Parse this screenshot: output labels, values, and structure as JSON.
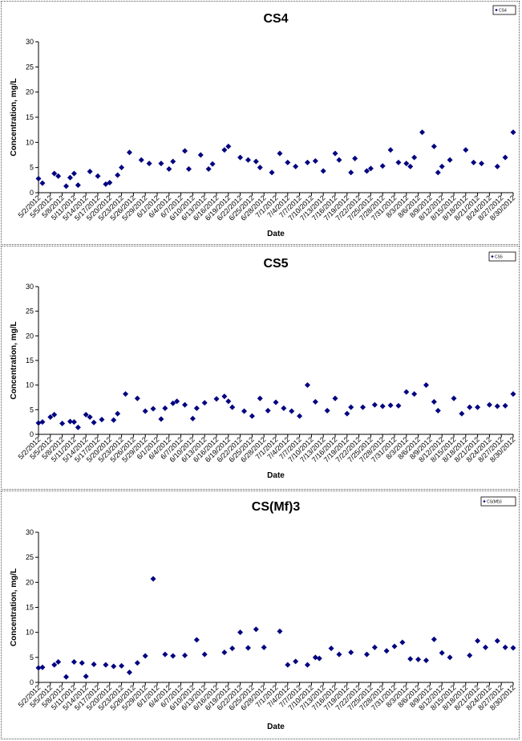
{
  "chart_data": [
    {
      "type": "scatter",
      "title": "CS4",
      "xlabel": "Date",
      "ylabel": "Concentration, mg/L",
      "ylim": [
        0,
        30
      ],
      "yticks": [
        0,
        5,
        10,
        15,
        20,
        25,
        30
      ],
      "xticks": [
        "5/2/2012",
        "5/5/2012",
        "5/8/2012",
        "5/11/2012",
        "5/14/2012",
        "5/17/2012",
        "5/20/2012",
        "5/23/2012",
        "5/26/2012",
        "5/29/2012",
        "6/1/2012",
        "6/4/2012",
        "6/7/2012",
        "6/10/2012",
        "6/13/2012",
        "6/16/2012",
        "6/19/2012",
        "6/22/2012",
        "6/25/2012",
        "6/28/2012",
        "7/1/2012",
        "7/4/2012",
        "7/7/2012",
        "7/10/2012",
        "7/13/2012",
        "7/16/2012",
        "7/19/2012",
        "7/22/2012",
        "7/25/2012",
        "7/28/2012",
        "7/31/2012",
        "8/3/2012",
        "8/6/2012",
        "8/9/2012",
        "8/12/2012",
        "8/15/2012",
        "8/18/2012",
        "8/21/2012",
        "8/24/2012",
        "8/27/2012",
        "8/30/2012"
      ],
      "legend": "top-right",
      "series": [
        {
          "name": "CS4",
          "color": "#000080",
          "x": [
            "5/2/2012",
            "5/3/2012",
            "5/6/2012",
            "5/7/2012",
            "5/9/2012",
            "5/10/2012",
            "5/11/2012",
            "5/12/2012",
            "5/15/2012",
            "5/17/2012",
            "5/19/2012",
            "5/20/2012",
            "5/22/2012",
            "5/23/2012",
            "5/25/2012",
            "5/28/2012",
            "5/30/2012",
            "6/2/2012",
            "6/4/2012",
            "6/5/2012",
            "6/8/2012",
            "6/9/2012",
            "6/12/2012",
            "6/14/2012",
            "6/15/2012",
            "6/18/2012",
            "6/19/2012",
            "6/22/2012",
            "6/24/2012",
            "6/26/2012",
            "6/27/2012",
            "6/30/2012",
            "7/2/2012",
            "7/4/2012",
            "7/6/2012",
            "7/9/2012",
            "7/11/2012",
            "7/13/2012",
            "7/16/2012",
            "7/17/2012",
            "7/20/2012",
            "7/21/2012",
            "7/24/2012",
            "7/25/2012",
            "7/28/2012",
            "7/30/2012",
            "8/1/2012",
            "8/3/2012",
            "8/4/2012",
            "8/5/2012",
            "8/7/2012",
            "8/10/2012",
            "8/11/2012",
            "8/12/2012",
            "8/14/2012",
            "8/18/2012",
            "8/20/2012",
            "8/22/2012",
            "8/26/2012",
            "8/28/2012",
            "8/30/2012"
          ],
          "y": [
            2.8,
            1.9,
            3.8,
            3.3,
            1.3,
            3.0,
            3.8,
            1.5,
            4.2,
            3.3,
            1.7,
            2.0,
            3.5,
            5.0,
            8.0,
            6.5,
            5.8,
            5.8,
            4.7,
            6.2,
            8.3,
            4.7,
            7.5,
            4.7,
            5.7,
            8.5,
            9.2,
            7.0,
            6.5,
            6.2,
            5.0,
            4.0,
            7.8,
            6.0,
            5.2,
            6.0,
            6.3,
            4.3,
            7.8,
            6.5,
            4.0,
            6.8,
            4.3,
            4.8,
            5.3,
            8.5,
            6.0,
            5.8,
            5.2,
            7.0,
            12.0,
            9.2,
            4.0,
            5.2,
            6.5,
            8.5,
            6.0,
            5.8,
            5.2,
            7.0,
            12.0
          ]
        }
      ]
    },
    {
      "type": "scatter",
      "title": "CS5",
      "xlabel": "Date",
      "ylabel": "Concentration, mg/L",
      "ylim": [
        0,
        30
      ],
      "yticks": [
        0,
        5,
        10,
        15,
        20,
        25,
        30
      ],
      "xticks": [
        "5/2/2012",
        "5/5/2012",
        "5/8/2012",
        "5/11/2012",
        "5/14/2012",
        "5/17/2012",
        "5/20/2012",
        "5/23/2012",
        "5/26/2012",
        "5/29/2012",
        "6/1/2012",
        "6/4/2012",
        "6/7/2012",
        "6/10/2012",
        "6/13/2012",
        "6/16/2012",
        "6/19/2012",
        "6/22/2012",
        "6/25/2012",
        "6/28/2012",
        "7/1/2012",
        "7/4/2012",
        "7/7/2012",
        "7/10/2012",
        "7/13/2012",
        "7/16/2012",
        "7/19/2012",
        "7/22/2012",
        "7/25/2012",
        "7/28/2012",
        "7/31/2012",
        "8/3/2012",
        "8/6/2012",
        "8/9/2012",
        "8/12/2012",
        "8/15/2012",
        "8/18/2012",
        "8/21/2012",
        "8/24/2012",
        "8/27/2012",
        "8/30/2012"
      ],
      "legend": "top-right",
      "series": [
        {
          "name": "CS5",
          "color": "#000080",
          "x": [
            "5/2/2012",
            "5/3/2012",
            "5/5/2012",
            "5/6/2012",
            "5/8/2012",
            "5/10/2012",
            "5/11/2012",
            "5/12/2012",
            "5/14/2012",
            "5/15/2012",
            "5/16/2012",
            "5/18/2012",
            "5/21/2012",
            "5/22/2012",
            "5/24/2012",
            "5/27/2012",
            "5/29/2012",
            "5/31/2012",
            "6/2/2012",
            "6/3/2012",
            "6/5/2012",
            "6/6/2012",
            "6/8/2012",
            "6/10/2012",
            "6/11/2012",
            "6/13/2012",
            "6/16/2012",
            "6/18/2012",
            "6/19/2012",
            "6/20/2012",
            "6/23/2012",
            "6/25/2012",
            "6/27/2012",
            "6/29/2012",
            "7/1/2012",
            "7/3/2012",
            "7/5/2012",
            "7/7/2012",
            "7/9/2012",
            "7/11/2012",
            "7/14/2012",
            "7/16/2012",
            "7/19/2012",
            "7/20/2012",
            "7/23/2012",
            "7/26/2012",
            "7/28/2012",
            "7/30/2012",
            "8/1/2012",
            "8/3/2012",
            "8/5/2012",
            "8/8/2012",
            "8/10/2012",
            "8/11/2012",
            "8/15/2012",
            "8/17/2012",
            "8/19/2012",
            "8/21/2012",
            "8/24/2012",
            "8/26/2012",
            "8/28/2012",
            "8/30/2012"
          ],
          "y": [
            2.3,
            2.5,
            3.5,
            4.0,
            2.2,
            2.6,
            2.5,
            1.4,
            4.0,
            3.5,
            2.4,
            3.0,
            2.9,
            4.2,
            8.2,
            7.3,
            4.7,
            5.2,
            3.1,
            5.3,
            6.3,
            6.7,
            6.0,
            3.2,
            5.3,
            6.4,
            7.2,
            7.7,
            6.7,
            5.5,
            4.7,
            3.7,
            7.3,
            4.8,
            6.5,
            5.3,
            4.7,
            3.7,
            10.0,
            6.6,
            4.8,
            7.3,
            4.2,
            5.5,
            5.5,
            6.0,
            5.7,
            5.9,
            5.8,
            8.6,
            8.2,
            10.0,
            6.6,
            4.8,
            7.3,
            4.2,
            5.5,
            5.5,
            6.0,
            5.7,
            5.8,
            8.2
          ]
        }
      ]
    },
    {
      "type": "scatter",
      "title": "CS(Mf)3",
      "xlabel": "Date",
      "ylabel": "Concentration, mg/L",
      "ylim": [
        0,
        30
      ],
      "yticks": [
        0,
        5,
        10,
        15,
        20,
        25,
        30
      ],
      "xticks": [
        "5/2/2012",
        "5/5/2012",
        "5/8/2012",
        "5/11/2012",
        "5/14/2012",
        "5/17/2012",
        "5/20/2012",
        "5/23/2012",
        "5/26/2012",
        "5/29/2012",
        "6/1/2012",
        "6/4/2012",
        "6/7/2012",
        "6/10/2012",
        "6/13/2012",
        "6/16/2012",
        "6/19/2012",
        "6/22/2012",
        "6/25/2012",
        "6/28/2012",
        "7/1/2012",
        "7/4/2012",
        "7/7/2012",
        "7/10/2012",
        "7/13/2012",
        "7/16/2012",
        "7/19/2012",
        "7/22/2012",
        "7/25/2012",
        "7/28/2012",
        "7/31/2012",
        "8/3/2012",
        "8/6/2012",
        "8/9/2012",
        "8/12/2012",
        "8/15/2012",
        "8/18/2012",
        "8/21/2012",
        "8/24/2012",
        "8/27/2012",
        "8/30/2012"
      ],
      "legend": "top-right",
      "series": [
        {
          "name": "CS(Mf)3",
          "color": "#000080",
          "x": [
            "5/2/2012",
            "5/3/2012",
            "5/6/2012",
            "5/7/2012",
            "5/9/2012",
            "5/11/2012",
            "5/13/2012",
            "5/14/2012",
            "5/16/2012",
            "5/19/2012",
            "5/21/2012",
            "5/23/2012",
            "5/25/2012",
            "5/27/2012",
            "5/29/2012",
            "5/31/2012",
            "6/3/2012",
            "6/5/2012",
            "6/8/2012",
            "6/11/2012",
            "6/13/2012",
            "6/18/2012",
            "6/20/2012",
            "6/22/2012",
            "6/24/2012",
            "6/26/2012",
            "6/28/2012",
            "7/2/2012",
            "7/4/2012",
            "7/6/2012",
            "7/9/2012",
            "7/11/2012",
            "7/12/2012",
            "7/15/2012",
            "7/17/2012",
            "7/20/2012",
            "7/24/2012",
            "7/26/2012",
            "7/29/2012",
            "7/31/2012",
            "8/2/2012",
            "8/4/2012",
            "8/6/2012",
            "8/8/2012",
            "8/10/2012",
            "8/12/2012",
            "8/14/2012",
            "8/19/2012",
            "8/21/2012",
            "8/23/2012",
            "8/26/2012",
            "8/28/2012",
            "8/30/2012"
          ],
          "y": [
            2.9,
            3.0,
            3.5,
            4.1,
            1.1,
            4.1,
            3.9,
            1.2,
            3.6,
            3.5,
            3.2,
            3.3,
            2.0,
            3.9,
            5.3,
            20.7,
            5.6,
            5.3,
            5.4,
            8.5,
            5.6,
            6.0,
            6.8,
            10.0,
            6.9,
            10.6,
            7.0,
            10.2,
            3.5,
            4.2,
            3.5,
            5.0,
            4.8,
            6.8,
            5.6,
            6.0,
            5.6,
            7.0,
            6.3,
            7.2,
            8.0,
            4.7,
            4.6,
            4.4,
            8.6,
            5.9,
            5.0,
            5.4,
            8.3,
            7.0,
            8.3,
            7.0,
            6.9
          ]
        }
      ]
    }
  ]
}
